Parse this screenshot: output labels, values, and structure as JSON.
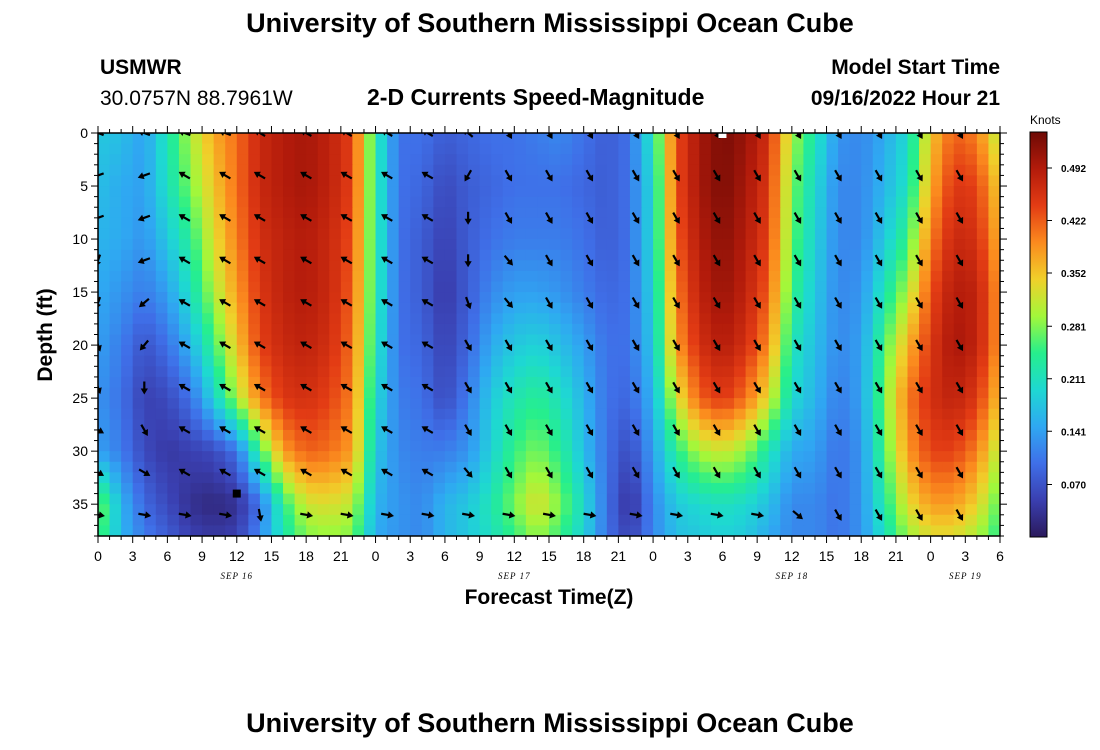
{
  "header": {
    "title": "University of Southern Mississippi Ocean Cube",
    "station": "USMWR",
    "coords": "30.0757N  88.7961W",
    "subtitle": "2-D Currents Speed-Magnitude",
    "model_label": "Model Start Time",
    "model_time": "09/16/2022 Hour 21"
  },
  "footer": {
    "title": "University of Southern Mississippi Ocean Cube"
  },
  "colors": {
    "ramp": [
      "#2b1a5c",
      "#3a3fb0",
      "#3f6fe8",
      "#2fa8f2",
      "#1ed8d2",
      "#26ef8c",
      "#a3f73a",
      "#f0d02a",
      "#fb8a1e",
      "#e33c14",
      "#b31b0b",
      "#6e0a05"
    ],
    "arrow": "#000000",
    "frame": "#000000"
  },
  "chart_data": {
    "type": "heatmap",
    "title": "2-D Currents Speed-Magnitude",
    "xlabel": "Forecast Time(Z)",
    "ylabel": "Depth (ft)",
    "xlim": [
      0,
      78
    ],
    "ylim": [
      0,
      38
    ],
    "y_reversed": true,
    "x_tick_values": [
      0,
      3,
      6,
      9,
      12,
      15,
      18,
      21,
      24,
      27,
      30,
      33,
      36,
      39,
      42,
      45,
      48,
      51,
      54,
      57,
      60,
      63,
      66,
      69,
      72,
      75,
      78
    ],
    "x_tick_labels": [
      "0",
      "3",
      "6",
      "9",
      "12",
      "15",
      "18",
      "21",
      "0",
      "3",
      "6",
      "9",
      "12",
      "15",
      "18",
      "21",
      "0",
      "3",
      "6",
      "9",
      "12",
      "15",
      "18",
      "21",
      "0",
      "3",
      "6"
    ],
    "y_ticks": [
      0,
      5,
      10,
      15,
      20,
      25,
      30,
      35
    ],
    "date_labels": [
      {
        "hour": 12,
        "label": "SEP 16"
      },
      {
        "hour": 36,
        "label": "SEP 17"
      },
      {
        "hour": 60,
        "label": "SEP 18"
      },
      {
        "hour": 75,
        "label": "SEP 19"
      }
    ],
    "colorbar": {
      "unit": "Knots",
      "range": [
        0.0,
        0.54
      ],
      "ticks": [
        0.07,
        0.141,
        0.211,
        0.281,
        0.352,
        0.422,
        0.492
      ],
      "tick_labels": [
        "0.070",
        "0.141",
        "0.211",
        "0.281",
        "0.352",
        "0.422",
        "0.492"
      ]
    },
    "speed_hours": [
      0,
      2,
      4,
      6,
      8,
      10,
      12,
      14,
      16,
      18,
      20,
      22,
      24,
      26,
      28,
      30,
      32,
      34,
      36,
      38,
      40,
      42,
      44,
      46,
      48,
      50,
      52,
      54,
      56,
      58,
      60,
      62,
      64,
      66,
      68,
      70,
      72,
      74,
      76,
      78
    ],
    "speed_depths": [
      0,
      5,
      10,
      15,
      20,
      25,
      30,
      35,
      38
    ],
    "speed_knots": [
      [
        0.18,
        0.17,
        0.14,
        0.22,
        0.3,
        0.37,
        0.41,
        0.47,
        0.49,
        0.5,
        0.48,
        0.44,
        0.23,
        0.1,
        0.1,
        0.08,
        0.09,
        0.1,
        0.1,
        0.11,
        0.12,
        0.1,
        0.08,
        0.1,
        0.22,
        0.43,
        0.5,
        0.53,
        0.51,
        0.46,
        0.3,
        0.22,
        0.13,
        0.12,
        0.15,
        0.2,
        0.35,
        0.42,
        0.4,
        0.3
      ],
      [
        0.17,
        0.15,
        0.14,
        0.21,
        0.28,
        0.35,
        0.41,
        0.47,
        0.49,
        0.5,
        0.48,
        0.44,
        0.23,
        0.1,
        0.09,
        0.06,
        0.08,
        0.09,
        0.1,
        0.1,
        0.1,
        0.09,
        0.08,
        0.1,
        0.2,
        0.43,
        0.5,
        0.53,
        0.5,
        0.45,
        0.28,
        0.2,
        0.12,
        0.12,
        0.16,
        0.21,
        0.37,
        0.45,
        0.44,
        0.34
      ],
      [
        0.16,
        0.15,
        0.13,
        0.18,
        0.24,
        0.33,
        0.4,
        0.46,
        0.48,
        0.49,
        0.47,
        0.43,
        0.23,
        0.1,
        0.08,
        0.05,
        0.08,
        0.1,
        0.11,
        0.11,
        0.11,
        0.1,
        0.08,
        0.1,
        0.2,
        0.42,
        0.49,
        0.52,
        0.49,
        0.44,
        0.27,
        0.19,
        0.12,
        0.12,
        0.18,
        0.25,
        0.4,
        0.47,
        0.46,
        0.36
      ],
      [
        0.15,
        0.13,
        0.11,
        0.14,
        0.21,
        0.3,
        0.38,
        0.45,
        0.48,
        0.49,
        0.47,
        0.42,
        0.23,
        0.1,
        0.08,
        0.04,
        0.08,
        0.12,
        0.14,
        0.14,
        0.13,
        0.11,
        0.09,
        0.1,
        0.19,
        0.4,
        0.48,
        0.51,
        0.48,
        0.42,
        0.25,
        0.18,
        0.12,
        0.13,
        0.22,
        0.3,
        0.43,
        0.49,
        0.48,
        0.38
      ],
      [
        0.14,
        0.11,
        0.07,
        0.1,
        0.16,
        0.25,
        0.35,
        0.44,
        0.47,
        0.48,
        0.46,
        0.41,
        0.22,
        0.1,
        0.09,
        0.05,
        0.09,
        0.15,
        0.18,
        0.19,
        0.17,
        0.14,
        0.1,
        0.1,
        0.18,
        0.38,
        0.46,
        0.49,
        0.46,
        0.39,
        0.22,
        0.17,
        0.12,
        0.14,
        0.26,
        0.36,
        0.45,
        0.5,
        0.48,
        0.38
      ],
      [
        0.13,
        0.1,
        0.05,
        0.06,
        0.1,
        0.19,
        0.3,
        0.4,
        0.45,
        0.46,
        0.44,
        0.4,
        0.2,
        0.11,
        0.1,
        0.06,
        0.11,
        0.18,
        0.22,
        0.24,
        0.21,
        0.16,
        0.1,
        0.09,
        0.16,
        0.32,
        0.42,
        0.45,
        0.41,
        0.33,
        0.2,
        0.16,
        0.11,
        0.14,
        0.28,
        0.4,
        0.46,
        0.48,
        0.45,
        0.35
      ],
      [
        0.14,
        0.11,
        0.06,
        0.04,
        0.05,
        0.06,
        0.1,
        0.25,
        0.38,
        0.42,
        0.41,
        0.38,
        0.18,
        0.12,
        0.11,
        0.11,
        0.13,
        0.19,
        0.25,
        0.28,
        0.24,
        0.17,
        0.1,
        0.06,
        0.14,
        0.24,
        0.3,
        0.32,
        0.29,
        0.22,
        0.15,
        0.14,
        0.1,
        0.13,
        0.26,
        0.38,
        0.44,
        0.44,
        0.4,
        0.3
      ],
      [
        0.29,
        0.16,
        0.09,
        0.06,
        0.03,
        0.02,
        0.03,
        0.1,
        0.24,
        0.32,
        0.33,
        0.31,
        0.16,
        0.13,
        0.12,
        0.16,
        0.18,
        0.22,
        0.28,
        0.33,
        0.28,
        0.2,
        0.1,
        0.03,
        0.12,
        0.18,
        0.2,
        0.21,
        0.2,
        0.17,
        0.12,
        0.12,
        0.1,
        0.13,
        0.23,
        0.33,
        0.38,
        0.38,
        0.34,
        0.26
      ],
      [
        0.27,
        0.16,
        0.11,
        0.08,
        0.05,
        0.04,
        0.05,
        0.12,
        0.22,
        0.28,
        0.29,
        0.28,
        0.15,
        0.13,
        0.12,
        0.16,
        0.18,
        0.21,
        0.25,
        0.29,
        0.25,
        0.19,
        0.1,
        0.05,
        0.12,
        0.17,
        0.18,
        0.19,
        0.18,
        0.15,
        0.12,
        0.12,
        0.1,
        0.13,
        0.21,
        0.29,
        0.33,
        0.33,
        0.3,
        0.24
      ]
    ],
    "vector_hours": [
      0,
      4,
      7.5,
      11,
      14,
      18,
      21.5,
      25,
      28.5,
      32,
      35.5,
      39,
      42.5,
      46.5,
      50,
      53.5,
      57,
      60.5,
      64,
      67.5,
      71,
      74.5
    ],
    "vector_depths": [
      0,
      4,
      8,
      12,
      16,
      20,
      24,
      28,
      32,
      36
    ],
    "vector_direction_deg": [
      [
        290,
        290,
        290,
        290,
        300,
        300,
        300,
        300,
        300,
        310,
        150,
        150,
        150,
        150,
        150,
        150,
        150,
        150,
        150,
        150,
        150,
        150
      ],
      [
        250,
        250,
        300,
        300,
        300,
        300,
        300,
        300,
        300,
        210,
        150,
        150,
        150,
        150,
        150,
        150,
        150,
        150,
        150,
        150,
        150,
        150
      ],
      [
        250,
        250,
        300,
        300,
        300,
        300,
        300,
        300,
        300,
        180,
        150,
        150,
        150,
        150,
        150,
        150,
        150,
        150,
        150,
        150,
        150,
        150
      ],
      [
        200,
        250,
        300,
        300,
        300,
        300,
        300,
        300,
        300,
        180,
        140,
        150,
        150,
        150,
        150,
        150,
        150,
        150,
        150,
        150,
        150,
        150
      ],
      [
        200,
        230,
        300,
        300,
        300,
        300,
        300,
        300,
        300,
        160,
        140,
        150,
        150,
        150,
        150,
        150,
        150,
        150,
        150,
        150,
        150,
        150
      ],
      [
        160,
        220,
        300,
        300,
        300,
        300,
        300,
        300,
        300,
        150,
        150,
        150,
        150,
        150,
        150,
        150,
        150,
        150,
        150,
        150,
        150,
        150
      ],
      [
        160,
        180,
        300,
        300,
        300,
        300,
        300,
        300,
        300,
        150,
        150,
        150,
        150,
        150,
        150,
        150,
        150,
        150,
        150,
        150,
        150,
        150
      ],
      [
        120,
        150,
        300,
        300,
        300,
        300,
        300,
        300,
        300,
        150,
        150,
        150,
        150,
        150,
        150,
        150,
        150,
        150,
        150,
        150,
        150,
        150
      ],
      [
        120,
        120,
        300,
        300,
        300,
        300,
        300,
        300,
        300,
        140,
        150,
        150,
        150,
        150,
        150,
        150,
        150,
        150,
        150,
        150,
        150,
        150
      ],
      [
        100,
        100,
        100,
        100,
        170,
        100,
        100,
        100,
        100,
        100,
        100,
        100,
        100,
        100,
        100,
        100,
        100,
        130,
        150,
        150,
        150,
        150
      ]
    ],
    "markers": [
      {
        "hour": 12,
        "depth": 34,
        "shape": "square",
        "color": "#000000"
      },
      {
        "hour": 54,
        "depth": 0,
        "shape": "square",
        "color": "#ffffff"
      }
    ]
  }
}
